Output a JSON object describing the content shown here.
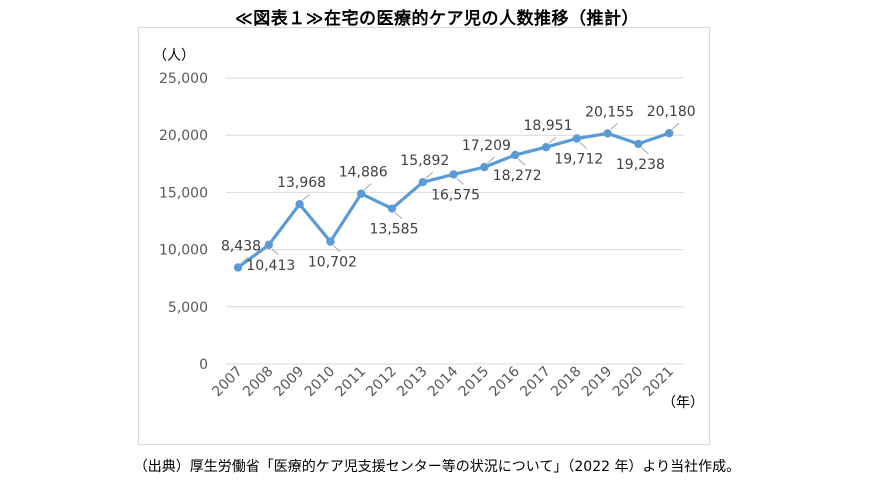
{
  "title": "≪図表１≫在宅の医療的ケア児の人数推移（推計）",
  "source": "（出典）厚生労働省「医療的ケア児支援センター等の状況について」（2022 年）より当社作成。",
  "chart_data": {
    "type": "line",
    "title": "≪図表１≫在宅の医療的ケア児の人数推移（推計）",
    "ylabel": "（人）",
    "xlabel": "（年）",
    "ylim": [
      0,
      25000
    ],
    "yticks": [
      0,
      5000,
      10000,
      15000,
      20000,
      25000
    ],
    "ytick_labels": [
      "0",
      "5,000",
      "10,000",
      "15,000",
      "20,000",
      "25,000"
    ],
    "categories": [
      "2007",
      "2008",
      "2009",
      "2010",
      "2011",
      "2012",
      "2013",
      "2014",
      "2015",
      "2016",
      "2017",
      "2018",
      "2019",
      "2020",
      "2021"
    ],
    "values": [
      8438,
      10413,
      13968,
      10702,
      14886,
      13585,
      15892,
      16575,
      17209,
      18272,
      18951,
      19712,
      20155,
      19238,
      20180
    ],
    "value_labels": [
      "8,438",
      "10,413",
      "13,968",
      "10,702",
      "14,886",
      "13,585",
      "15,892",
      "16,575",
      "17,209",
      "18,272",
      "18,951",
      "19,712",
      "20,155",
      "19,238",
      "20,180"
    ],
    "grid": true,
    "line_color": "#5b9bd5",
    "grid_color": "#d9d9d9"
  }
}
